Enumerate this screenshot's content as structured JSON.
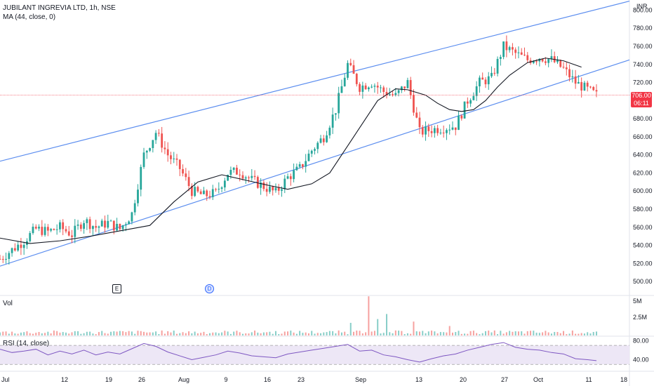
{
  "header": {
    "title": "JUBILANT INGREVIA LTD, 1h, NSE",
    "ma_label": "MA (44, close, 0)",
    "currency": "INR"
  },
  "panes": {
    "volume_label": "Vol",
    "rsi_label": "RSI (14, close)"
  },
  "price_tag": {
    "price": "706.00",
    "countdown": "06:11"
  },
  "markers": {
    "earnings": "E",
    "dividend": "D"
  },
  "colors": {
    "up": "#26a69a",
    "down": "#ef5350",
    "ma": "#131722",
    "channel": "#5b8def",
    "rsi": "#7e57c2",
    "rsi_band": "#ede7f6",
    "price_line": "#f23645"
  },
  "chart_data": [
    {
      "type": "candlestick",
      "symbol": "JUBILANT INGREVIA LTD",
      "interval": "1h",
      "exchange": "NSE",
      "x_ticks": [
        "Jul",
        "12",
        "19",
        "26",
        "Aug",
        "9",
        "16",
        "23",
        "Sep",
        "13",
        "20",
        "27",
        "Oct",
        "11",
        "18"
      ],
      "y_ticks": [
        500,
        520,
        540,
        560,
        580,
        600,
        620,
        640,
        660,
        680,
        700,
        720,
        740,
        760,
        780,
        800
      ],
      "ylim": [
        490,
        805
      ],
      "last_price": 706.0,
      "close_path": [
        [
          0,
          525
        ],
        [
          4,
          535
        ],
        [
          8,
          545
        ],
        [
          12,
          558
        ],
        [
          16,
          555
        ],
        [
          20,
          560
        ],
        [
          24,
          552
        ],
        [
          28,
          568
        ],
        [
          32,
          560
        ],
        [
          36,
          565
        ],
        [
          40,
          558
        ],
        [
          44,
          575
        ],
        [
          48,
          640
        ],
        [
          52,
          665
        ],
        [
          56,
          640
        ],
        [
          60,
          625
        ],
        [
          64,
          600
        ],
        [
          68,
          595
        ],
        [
          72,
          598
        ],
        [
          76,
          620
        ],
        [
          80,
          622
        ],
        [
          84,
          612
        ],
        [
          88,
          605
        ],
        [
          92,
          598
        ],
        [
          96,
          615
        ],
        [
          100,
          625
        ],
        [
          104,
          645
        ],
        [
          108,
          660
        ],
        [
          112,
          690
        ],
        [
          116,
          740
        ],
        [
          120,
          715
        ],
        [
          124,
          720
        ],
        [
          128,
          710
        ],
        [
          132,
          705
        ],
        [
          136,
          720
        ],
        [
          140,
          665
        ],
        [
          144,
          668
        ],
        [
          148,
          670
        ],
        [
          152,
          672
        ],
        [
          156,
          700
        ],
        [
          160,
          720
        ],
        [
          164,
          725
        ],
        [
          168,
          760
        ],
        [
          172,
          752
        ],
        [
          176,
          745
        ],
        [
          180,
          748
        ],
        [
          184,
          745
        ],
        [
          188,
          735
        ],
        [
          192,
          720
        ],
        [
          196,
          712
        ],
        [
          199,
          706
        ]
      ],
      "ma_44": [
        [
          0,
          548
        ],
        [
          10,
          542
        ],
        [
          20,
          545
        ],
        [
          30,
          550
        ],
        [
          40,
          556
        ],
        [
          50,
          562
        ],
        [
          58,
          588
        ],
        [
          66,
          610
        ],
        [
          74,
          618
        ],
        [
          82,
          612
        ],
        [
          90,
          606
        ],
        [
          96,
          602
        ],
        [
          104,
          608
        ],
        [
          110,
          620
        ],
        [
          118,
          660
        ],
        [
          126,
          700
        ],
        [
          132,
          713
        ],
        [
          136,
          712
        ],
        [
          142,
          706
        ],
        [
          146,
          697
        ],
        [
          150,
          690
        ],
        [
          154,
          688
        ],
        [
          158,
          690
        ],
        [
          162,
          700
        ],
        [
          166,
          715
        ],
        [
          170,
          728
        ],
        [
          176,
          742
        ],
        [
          182,
          747
        ],
        [
          188,
          744
        ],
        [
          194,
          737
        ]
      ],
      "channel_upper": [
        [
          0,
          633
        ],
        [
          210,
          810
        ]
      ],
      "channel_lower": [
        [
          0,
          517
        ],
        [
          210,
          745
        ]
      ],
      "events": [
        {
          "type": "earnings",
          "label": "E"
        },
        {
          "type": "dividend",
          "label": "D"
        }
      ]
    },
    {
      "type": "bar",
      "name": "Vol",
      "y_ticks": [
        "5M",
        "2.5M"
      ],
      "ylim": [
        0,
        6
      ],
      "spikes": [
        [
          39,
          2.0
        ],
        [
          41,
          6.2
        ],
        [
          42,
          2.6
        ],
        [
          43,
          3.4
        ],
        [
          46,
          2.2
        ],
        [
          50,
          1.5
        ],
        [
          78,
          1.8
        ],
        [
          84,
          1.6
        ],
        [
          109,
          1.6
        ],
        [
          114,
          2.1
        ],
        [
          116,
          1.8
        ],
        [
          117,
          1.5
        ],
        [
          128,
          1.0
        ],
        [
          158,
          1.1
        ],
        [
          164,
          1.2
        ],
        [
          172,
          1.5
        ]
      ]
    },
    {
      "type": "line",
      "name": "RSI (14, close)",
      "y_ticks": [
        80,
        40
      ],
      "ylim": [
        20,
        85
      ],
      "bands": [
        70,
        30
      ],
      "values": [
        [
          0,
          62
        ],
        [
          4,
          55
        ],
        [
          8,
          58
        ],
        [
          12,
          62
        ],
        [
          16,
          50
        ],
        [
          20,
          58
        ],
        [
          24,
          52
        ],
        [
          28,
          60
        ],
        [
          32,
          50
        ],
        [
          36,
          56
        ],
        [
          40,
          52
        ],
        [
          44,
          63
        ],
        [
          48,
          74
        ],
        [
          52,
          68
        ],
        [
          56,
          56
        ],
        [
          60,
          48
        ],
        [
          64,
          40
        ],
        [
          68,
          45
        ],
        [
          72,
          50
        ],
        [
          76,
          58
        ],
        [
          80,
          54
        ],
        [
          84,
          48
        ],
        [
          88,
          46
        ],
        [
          92,
          44
        ],
        [
          96,
          52
        ],
        [
          100,
          56
        ],
        [
          104,
          60
        ],
        [
          108,
          64
        ],
        [
          112,
          68
        ],
        [
          116,
          72
        ],
        [
          120,
          58
        ],
        [
          124,
          60
        ],
        [
          128,
          50
        ],
        [
          132,
          46
        ],
        [
          136,
          40
        ],
        [
          140,
          35
        ],
        [
          144,
          42
        ],
        [
          148,
          48
        ],
        [
          152,
          52
        ],
        [
          156,
          60
        ],
        [
          160,
          66
        ],
        [
          164,
          72
        ],
        [
          168,
          76
        ],
        [
          172,
          66
        ],
        [
          176,
          62
        ],
        [
          180,
          60
        ],
        [
          184,
          55
        ],
        [
          188,
          52
        ],
        [
          192,
          42
        ],
        [
          196,
          40
        ],
        [
          199,
          38
        ]
      ]
    }
  ]
}
